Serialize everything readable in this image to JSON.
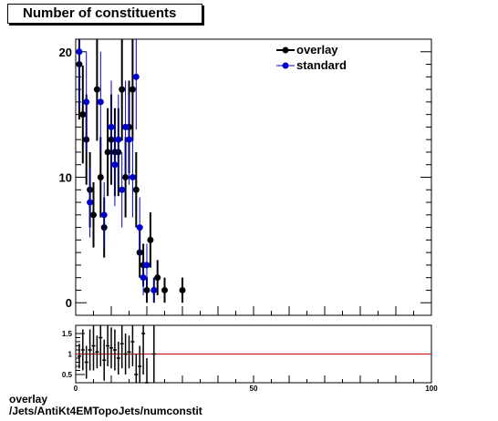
{
  "title": "Number of constituents",
  "caption": {
    "line1": "overlay",
    "line2": "/Jets/AntiKt4EMTopoJets/numconstit"
  },
  "chart_data": [
    {
      "type": "scatter",
      "xlim": [
        0,
        100
      ],
      "ylim": [
        -1,
        21
      ],
      "yticks": [
        "0",
        "10",
        "20"
      ],
      "series": [
        {
          "name": "overlay",
          "color": "#000000",
          "x": [
            1,
            2,
            3,
            4,
            5,
            6,
            7,
            8,
            9,
            10,
            11,
            12,
            13,
            14,
            15,
            16,
            17,
            18,
            19,
            20,
            21,
            22,
            23,
            25,
            30
          ],
          "y": [
            19,
            15,
            13,
            9,
            7,
            17,
            10,
            6,
            12,
            13,
            12,
            12,
            17,
            10,
            14,
            17,
            9,
            4,
            3,
            1,
            5,
            1,
            2,
            1,
            1
          ],
          "err": [
            4.4,
            3.9,
            3.6,
            3.0,
            2.6,
            4.1,
            3.2,
            2.4,
            3.5,
            3.6,
            3.5,
            3.5,
            4.1,
            3.2,
            3.7,
            4.1,
            3.0,
            2.0,
            1.7,
            1.0,
            2.2,
            1.0,
            1.4,
            1.0,
            1.0
          ]
        },
        {
          "name": "standard",
          "color": "#0000cc",
          "x": [
            1,
            3,
            4,
            7,
            8,
            10,
            11,
            12,
            13,
            14,
            15,
            16,
            17,
            18,
            19,
            20,
            22
          ],
          "y": [
            20,
            16,
            8,
            16,
            7,
            14,
            11,
            13,
            9,
            14,
            13,
            10,
            18,
            6,
            2,
            3,
            1
          ],
          "err": [
            4.5,
            4.0,
            2.8,
            4.0,
            2.6,
            3.7,
            3.3,
            3.6,
            3.0,
            3.7,
            3.6,
            3.2,
            4.2,
            2.4,
            1.4,
            1.7,
            1.0
          ]
        }
      ]
    },
    {
      "type": "scatter",
      "xlim": [
        0,
        100
      ],
      "xticks": [
        "0",
        "50",
        "100"
      ],
      "ylim": [
        0.3,
        1.7
      ],
      "yticks": [
        "0.5",
        "1",
        "1.5"
      ],
      "reference_line": 1,
      "series": [
        {
          "name": "ratio",
          "color": "#000000",
          "x": [
            1,
            2,
            3,
            4,
            5,
            6,
            7,
            8,
            9,
            10,
            11,
            12,
            13,
            14,
            15,
            16,
            17,
            18,
            19,
            20,
            22
          ],
          "y": [
            0.95,
            1.1,
            0.8,
            1.1,
            1.2,
            1.05,
            1.4,
            0.85,
            1.2,
            1.15,
            1.1,
            0.9,
            1.25,
            1.0,
            1.05,
            1.3,
            0.5,
            0.7,
            1.5,
            0.3,
            1.0
          ],
          "err": [
            0.3,
            0.5,
            0.4,
            0.5,
            0.6,
            0.4,
            0.7,
            0.5,
            0.5,
            0.5,
            0.5,
            0.4,
            0.6,
            0.5,
            0.4,
            0.6,
            0.5,
            0.5,
            1.0,
            0.6,
            1.0
          ]
        }
      ]
    }
  ]
}
